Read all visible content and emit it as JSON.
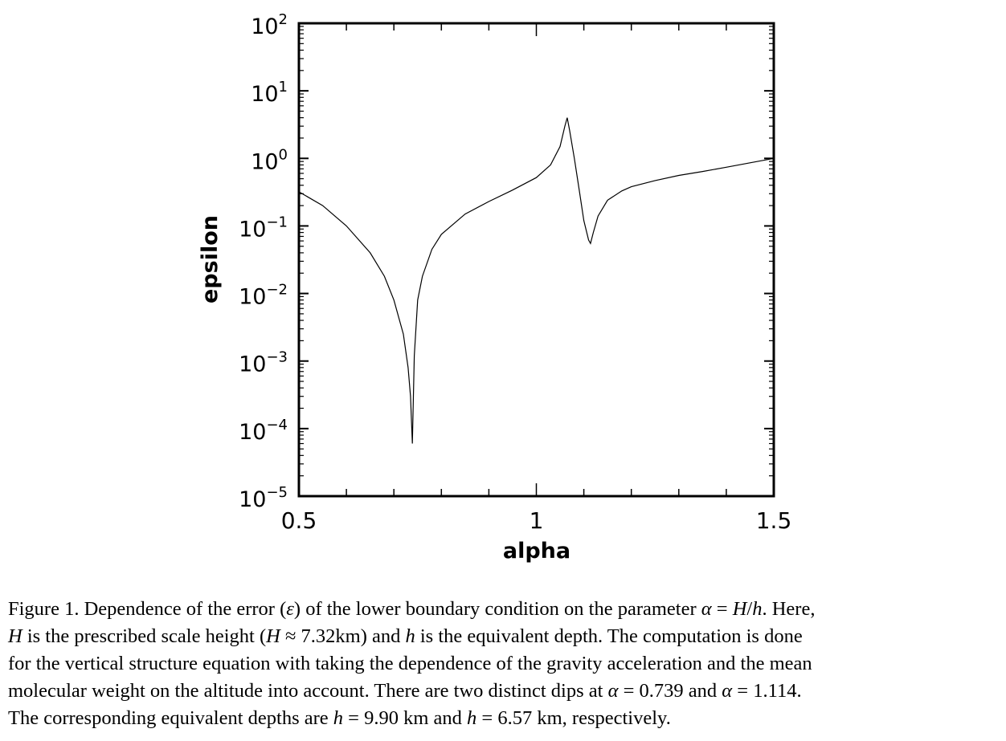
{
  "chart_data": {
    "type": "line",
    "xlabel": "alpha",
    "ylabel": "epsilon",
    "xlim": [
      0.5,
      1.5
    ],
    "ylim": [
      1e-05,
      100
    ],
    "yscale": "log",
    "x_ticks": [
      "0.5",
      "1",
      "1.5"
    ],
    "y_ticks": [
      {
        "base": "10",
        "exp": "2"
      },
      {
        "base": "10",
        "exp": "1"
      },
      {
        "base": "10",
        "exp": "0"
      },
      {
        "base": "10",
        "exp": "−1"
      },
      {
        "base": "10",
        "exp": "−2"
      },
      {
        "base": "10",
        "exp": "−3"
      },
      {
        "base": "10",
        "exp": "−4"
      },
      {
        "base": "10",
        "exp": "−5"
      }
    ],
    "grid": false,
    "series": [
      {
        "x": [
          0.5,
          0.55,
          0.6,
          0.65,
          0.68,
          0.7,
          0.72,
          0.73,
          0.735,
          0.739,
          0.743,
          0.75,
          0.76,
          0.78,
          0.8,
          0.85,
          0.9,
          0.95,
          1.0,
          1.03,
          1.05,
          1.06,
          1.065,
          1.07,
          1.08,
          1.09,
          1.1,
          1.11,
          1.114,
          1.12,
          1.13,
          1.15,
          1.18,
          1.2,
          1.25,
          1.3,
          1.35,
          1.4,
          1.45,
          1.5
        ],
        "y": [
          0.32,
          0.2,
          0.1,
          0.04,
          0.018,
          0.008,
          0.0025,
          0.0008,
          0.0003,
          6e-05,
          0.0012,
          0.008,
          0.018,
          0.045,
          0.075,
          0.15,
          0.23,
          0.34,
          0.52,
          0.8,
          1.5,
          3.0,
          4.0,
          2.6,
          1.0,
          0.35,
          0.12,
          0.062,
          0.055,
          0.08,
          0.14,
          0.24,
          0.33,
          0.38,
          0.47,
          0.56,
          0.64,
          0.74,
          0.86,
          1.0
        ]
      }
    ]
  },
  "caption": {
    "line1": [
      "Figure 1. Dependence of the error (",
      "ε",
      ") of the lower boundary condition on the parameter ",
      "α",
      " = ",
      "H",
      "/",
      "h",
      ". Here,"
    ],
    "line2": [
      "H",
      " is the prescribed scale height (",
      "H",
      " ≈ 7.32km) and ",
      "h",
      " is the equivalent depth. The computation is done"
    ],
    "line3": "for the vertical structure equation with taking the dependence of the gravity acceleration and the mean",
    "line4": [
      "molecular weight on the altitude into account. There are two distinct dips at ",
      "α",
      " = 0.739 and ",
      "α",
      " = 1.114."
    ],
    "line5": [
      "The corresponding equivalent depths are ",
      "h",
      " = 9.90 km and ",
      "h",
      " = 6.57 km, respectively."
    ]
  }
}
